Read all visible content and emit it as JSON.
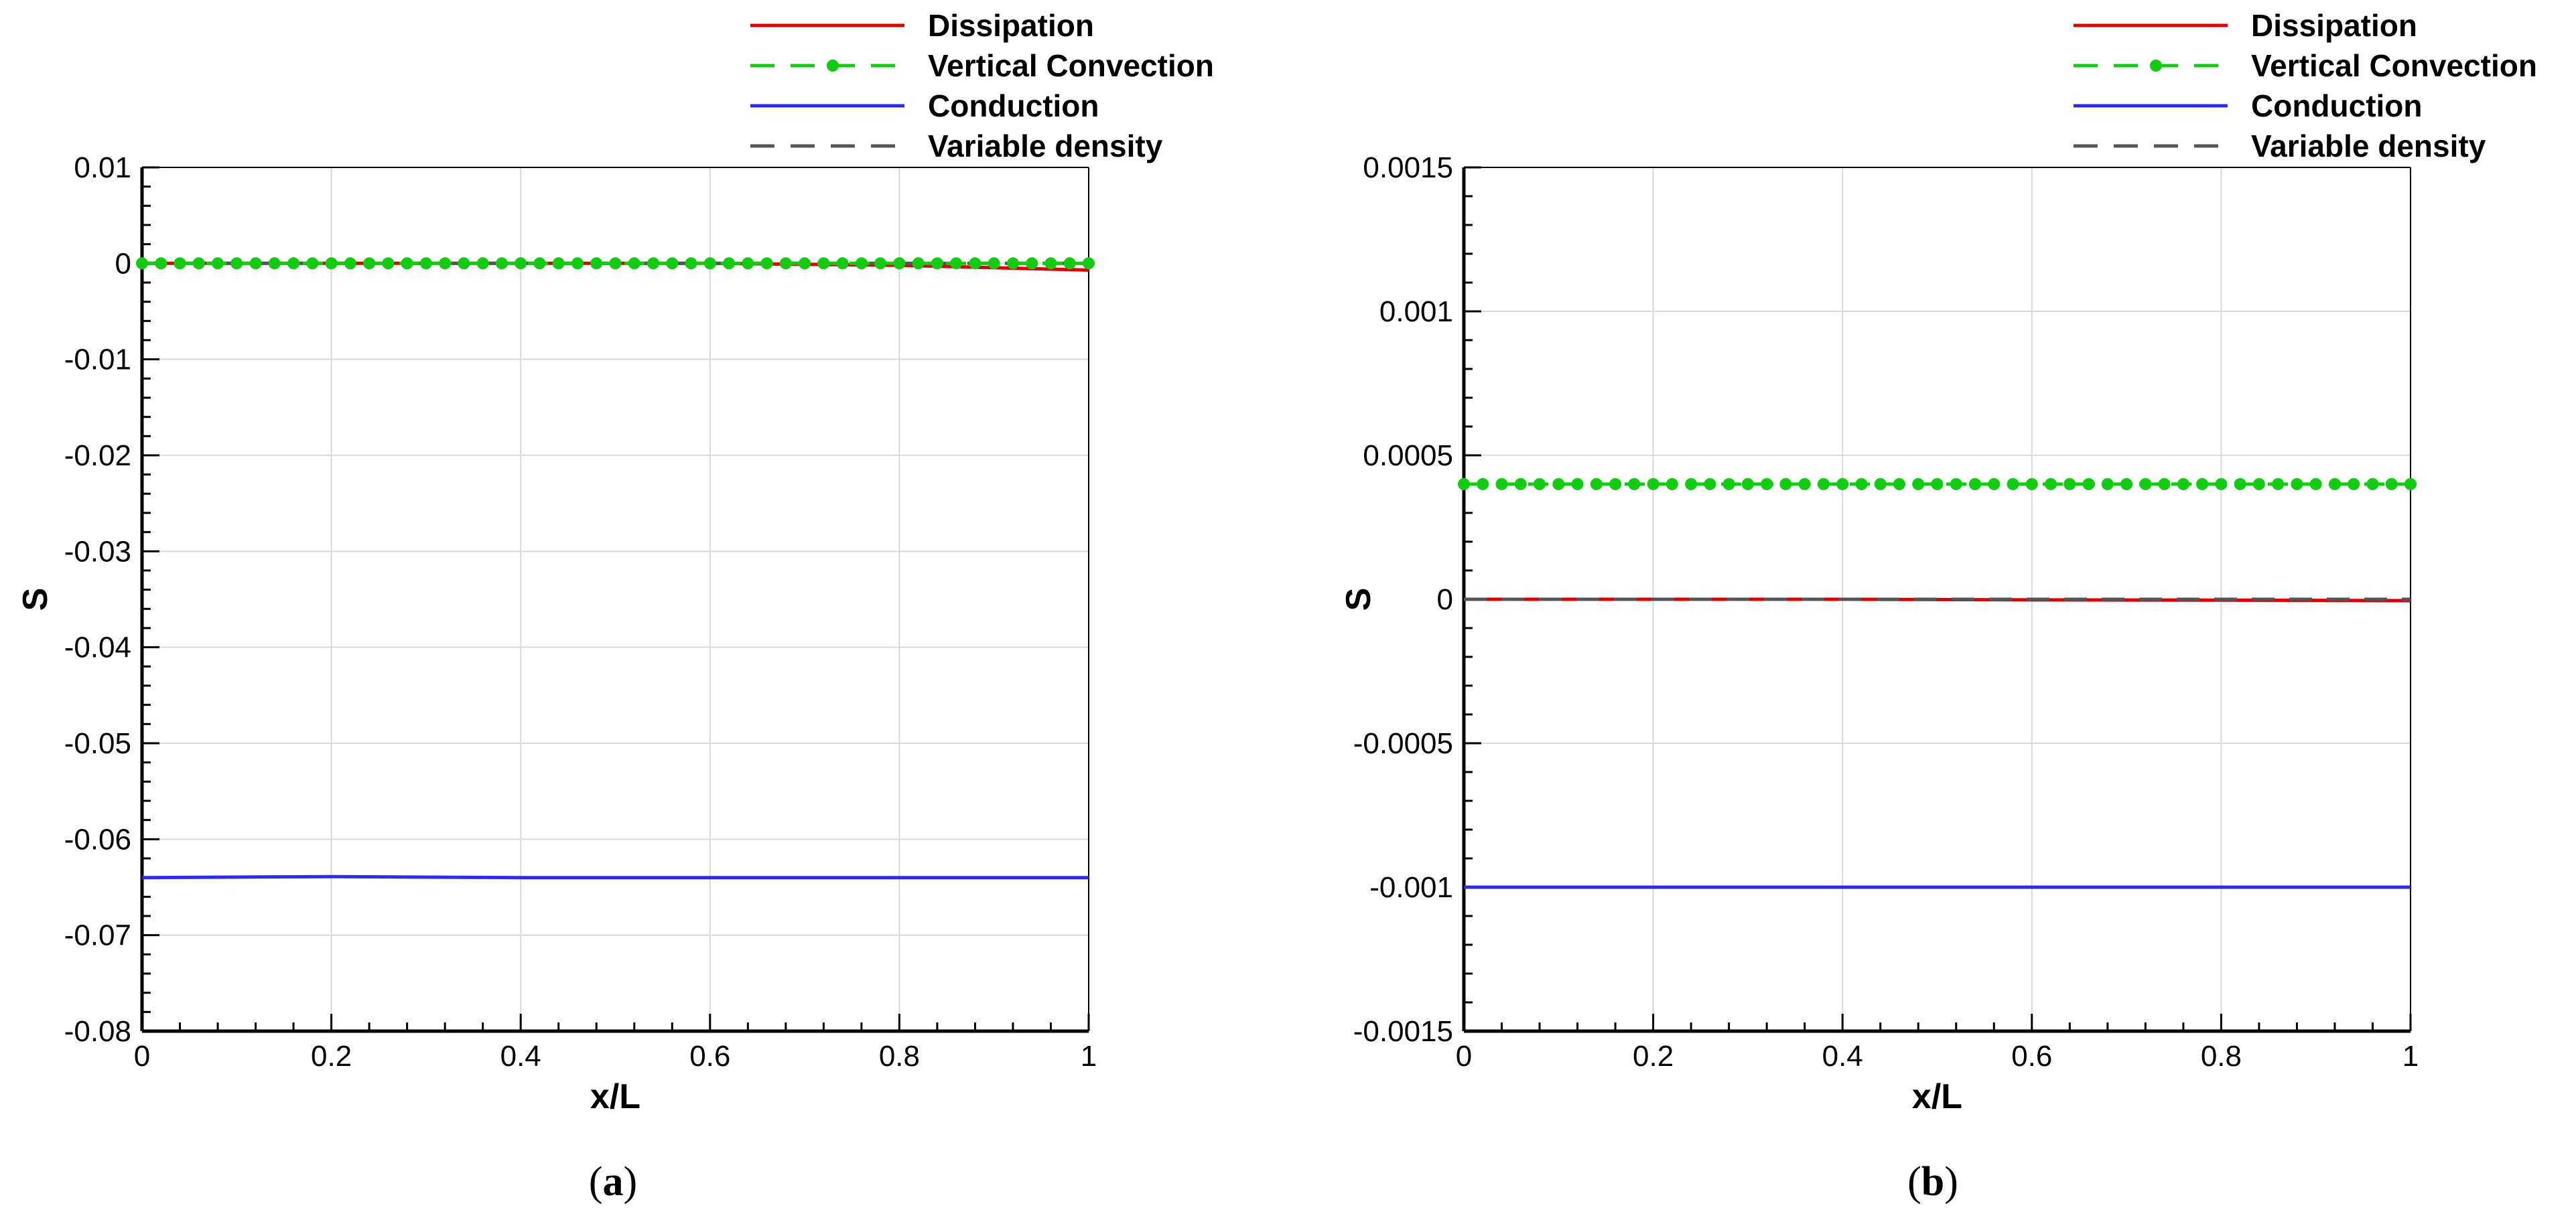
{
  "captions": [
    "a",
    "b"
  ],
  "colors": {
    "dissipation": "#dd0000",
    "vertical_convection": "#11cc11",
    "conduction": "#2d2de6",
    "variable_density": "#555555",
    "grid": "#d9d9d9"
  },
  "chart_data": [
    {
      "panel": "a",
      "type": "line",
      "xlabel": "x/L",
      "ylabel": "S",
      "xlim": [
        0,
        1
      ],
      "ylim": [
        -0.08,
        0.01
      ],
      "xticks": [
        "0",
        "0.2",
        "0.4",
        "0.6",
        "0.8",
        "1"
      ],
      "yticks": [
        "0.01",
        "0",
        "-0.01",
        "-0.02",
        "-0.03",
        "-0.04",
        "-0.05",
        "-0.06",
        "-0.07",
        "-0.08"
      ],
      "grid": true,
      "legend_position": "top-right",
      "x": [
        0,
        0.2,
        0.4,
        0.6,
        0.8,
        1
      ],
      "series": [
        {
          "name": "Dissipation",
          "style": "solid",
          "color_key": "dissipation",
          "values": [
            0,
            0,
            0,
            0,
            -0.0002,
            -0.0007
          ]
        },
        {
          "name": "Vertical Convection",
          "style": "dashed-dots",
          "color_key": "vertical_convection",
          "values": [
            0,
            0,
            0,
            0,
            0,
            0
          ]
        },
        {
          "name": "Conduction",
          "style": "solid",
          "color_key": "conduction",
          "values": [
            -0.064,
            -0.0639,
            -0.064,
            -0.064,
            -0.064,
            -0.064
          ]
        },
        {
          "name": "Variable density",
          "style": "dashed",
          "color_key": "variable_density",
          "values": [
            0,
            0,
            0,
            0,
            0,
            0
          ]
        }
      ]
    },
    {
      "panel": "b",
      "type": "line",
      "xlabel": "x/L",
      "ylabel": "S",
      "xlim": [
        0,
        1
      ],
      "ylim": [
        -0.0015,
        0.0015
      ],
      "xticks": [
        "0",
        "0.2",
        "0.4",
        "0.6",
        "0.8",
        "1"
      ],
      "yticks": [
        "0.0015",
        "0.001",
        "0.0005",
        "0",
        "-0.0005",
        "-0.001",
        "-0.0015"
      ],
      "grid": true,
      "legend_position": "top-right",
      "x": [
        0,
        0.2,
        0.4,
        0.6,
        0.8,
        1
      ],
      "series": [
        {
          "name": "Dissipation",
          "style": "solid",
          "color_key": "dissipation",
          "values": [
            0,
            0,
            0,
            -2e-06,
            -3e-06,
            -5e-06
          ]
        },
        {
          "name": "Vertical Convection",
          "style": "dashed-dots",
          "color_key": "vertical_convection",
          "values": [
            0.0004,
            0.0004,
            0.0004,
            0.0004,
            0.0004,
            0.0004
          ]
        },
        {
          "name": "Conduction",
          "style": "solid",
          "color_key": "conduction",
          "values": [
            -0.001,
            -0.001,
            -0.001,
            -0.001,
            -0.001,
            -0.001
          ]
        },
        {
          "name": "Variable density",
          "style": "dashed",
          "color_key": "variable_density",
          "values": [
            0,
            0,
            0,
            0,
            0,
            0
          ]
        }
      ]
    }
  ]
}
